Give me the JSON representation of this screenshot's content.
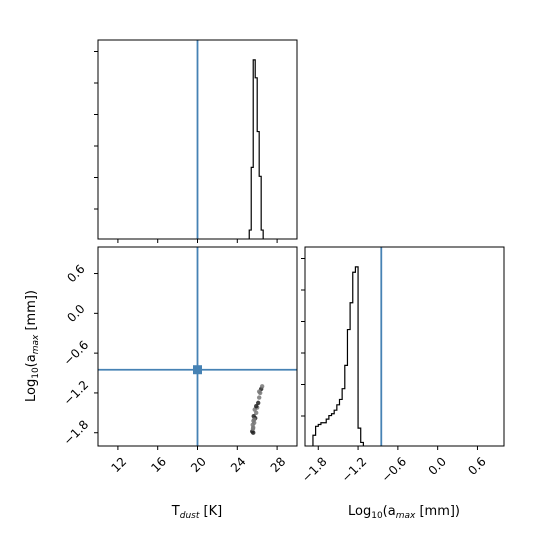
{
  "chart_data": {
    "type": "corner",
    "parameters": [
      {
        "key": "tdust",
        "base": "T",
        "sub": "dust",
        "suffix": " [K]"
      },
      {
        "key": "logamax",
        "base": "Log",
        "sub": "10",
        "mid": "(a",
        "sub2": "max",
        "suffix": " [mm])"
      }
    ],
    "truth": {
      "tdust": 20,
      "logamax": -0.85
    },
    "tdust_axis": {
      "range": [
        10,
        30
      ],
      "ticks": [
        "12",
        "16",
        "20",
        "24",
        "28"
      ]
    },
    "logamax_axis": {
      "range": [
        -2.0,
        1.0
      ],
      "ticks": [
        "−1.8",
        "−1.2",
        "−0.6",
        "0.0",
        "0.6"
      ]
    },
    "tdust_hist": {
      "edges": [
        25.2,
        25.4,
        25.6,
        25.8,
        26.0,
        26.2,
        26.4,
        26.6
      ],
      "counts": [
        0.05,
        0.4,
        1.0,
        0.9,
        0.6,
        0.35,
        0.05
      ]
    },
    "logamax_hist": {
      "edges": [
        -1.88,
        -1.84,
        -1.8,
        -1.76,
        -1.72,
        -1.68,
        -1.64,
        -1.6,
        -1.56,
        -1.52,
        -1.48,
        -1.44,
        -1.4,
        -1.36,
        -1.32,
        -1.28,
        -1.24,
        -1.2,
        -1.16,
        -1.12
      ],
      "counts": [
        0.06,
        0.11,
        0.12,
        0.13,
        0.13,
        0.15,
        0.17,
        0.18,
        0.2,
        0.23,
        0.26,
        0.32,
        0.45,
        0.65,
        0.8,
        0.97,
        1.0,
        0.1,
        0.02
      ]
    },
    "samples": {
      "tdust": [
        25.5,
        25.6,
        25.7,
        25.8,
        25.9,
        26.0,
        26.1,
        26.2,
        26.3,
        26.4,
        26.5,
        25.55,
        25.65,
        25.75,
        25.7,
        25.6,
        25.62,
        25.58,
        25.9,
        26.2
      ],
      "logamax": [
        -1.78,
        -1.72,
        -1.65,
        -1.58,
        -1.5,
        -1.42,
        -1.35,
        -1.27,
        -1.2,
        -1.14,
        -1.1,
        -1.68,
        -1.55,
        -1.45,
        -1.6,
        -1.8,
        -1.62,
        -1.74,
        -1.4,
        -1.18
      ]
    }
  }
}
